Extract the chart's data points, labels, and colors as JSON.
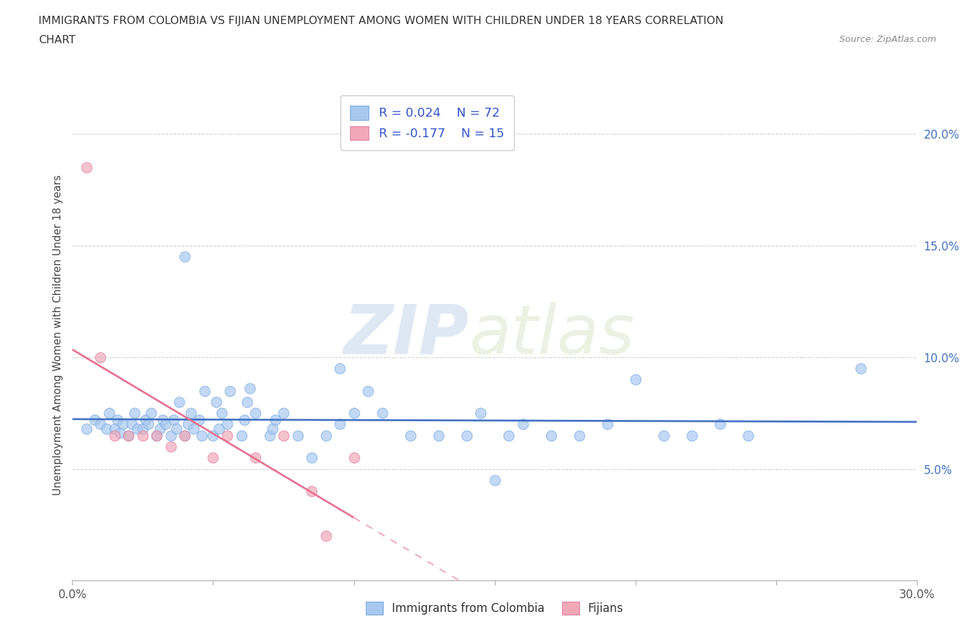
{
  "title_line1": "IMMIGRANTS FROM COLOMBIA VS FIJIAN UNEMPLOYMENT AMONG WOMEN WITH CHILDREN UNDER 18 YEARS CORRELATION",
  "title_line2": "CHART",
  "source": "Source: ZipAtlas.com",
  "ylabel": "Unemployment Among Women with Children Under 18 years",
  "xlim": [
    0.0,
    0.3
  ],
  "ylim": [
    0.0,
    0.22
  ],
  "xticks": [
    0.0,
    0.05,
    0.1,
    0.15,
    0.2,
    0.25,
    0.3
  ],
  "xtick_labels": [
    "0.0%",
    "",
    "",
    "",
    "",
    "",
    "30.0%"
  ],
  "yticks": [
    0.0,
    0.05,
    0.1,
    0.15,
    0.2
  ],
  "ytick_labels": [
    "",
    "5.0%",
    "10.0%",
    "15.0%",
    "20.0%"
  ],
  "colombia_color": "#a8c8f0",
  "fijian_color": "#f0a8b8",
  "colombia_line_color": "#4472c4",
  "fijian_line_color": "#e87090",
  "legend_r_colombia": "R = 0.024",
  "legend_n_colombia": "N = 72",
  "legend_r_fijian": "R = -0.177",
  "legend_n_fijian": "N = 15",
  "colombia_label": "Immigrants from Colombia",
  "fijian_label": "Fijians",
  "watermark_zip": "ZIP",
  "watermark_atlas": "atlas",
  "colombia_x": [
    0.005,
    0.008,
    0.01,
    0.012,
    0.013,
    0.015,
    0.016,
    0.017,
    0.018,
    0.02,
    0.021,
    0.022,
    0.023,
    0.025,
    0.026,
    0.027,
    0.028,
    0.03,
    0.031,
    0.032,
    0.033,
    0.035,
    0.036,
    0.037,
    0.038,
    0.04,
    0.041,
    0.042,
    0.043,
    0.045,
    0.046,
    0.047,
    0.05,
    0.051,
    0.052,
    0.053,
    0.055,
    0.056,
    0.06,
    0.061,
    0.062,
    0.063,
    0.065,
    0.07,
    0.071,
    0.072,
    0.075,
    0.08,
    0.085,
    0.09,
    0.095,
    0.1,
    0.105,
    0.11,
    0.12,
    0.13,
    0.14,
    0.145,
    0.15,
    0.155,
    0.16,
    0.17,
    0.18,
    0.19,
    0.2,
    0.21,
    0.22,
    0.23,
    0.24,
    0.28,
    0.04,
    0.095
  ],
  "colombia_y": [
    0.068,
    0.072,
    0.07,
    0.068,
    0.075,
    0.068,
    0.072,
    0.066,
    0.07,
    0.065,
    0.07,
    0.075,
    0.068,
    0.068,
    0.072,
    0.07,
    0.075,
    0.065,
    0.068,
    0.072,
    0.07,
    0.065,
    0.072,
    0.068,
    0.08,
    0.065,
    0.07,
    0.075,
    0.068,
    0.072,
    0.065,
    0.085,
    0.065,
    0.08,
    0.068,
    0.075,
    0.07,
    0.085,
    0.065,
    0.072,
    0.08,
    0.086,
    0.075,
    0.065,
    0.068,
    0.072,
    0.075,
    0.065,
    0.055,
    0.065,
    0.07,
    0.075,
    0.085,
    0.075,
    0.065,
    0.065,
    0.065,
    0.075,
    0.045,
    0.065,
    0.07,
    0.065,
    0.065,
    0.07,
    0.09,
    0.065,
    0.065,
    0.07,
    0.065,
    0.095,
    0.145,
    0.095
  ],
  "fijian_x": [
    0.005,
    0.01,
    0.015,
    0.02,
    0.025,
    0.03,
    0.035,
    0.04,
    0.05,
    0.055,
    0.065,
    0.075,
    0.085,
    0.09,
    0.1
  ],
  "fijian_y": [
    0.185,
    0.1,
    0.065,
    0.065,
    0.065,
    0.065,
    0.06,
    0.065,
    0.055,
    0.065,
    0.055,
    0.065,
    0.04,
    0.02,
    0.055
  ]
}
